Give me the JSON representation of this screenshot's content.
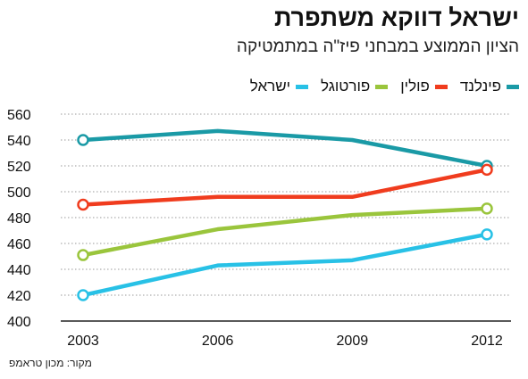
{
  "header": {
    "title": "ישראל דווקא משתפרת",
    "subtitle": "הציון הממוצע במבחני פיז\"ה במתמטיקה"
  },
  "legend": {
    "items": [
      {
        "label": "פינלנד",
        "color": "#1a9aa6"
      },
      {
        "label": "פולין",
        "color": "#f03c1e"
      },
      {
        "label": "פורטוגל",
        "color": "#9ac53c"
      },
      {
        "label": "ישראל",
        "color": "#28c1e6"
      }
    ]
  },
  "footer": {
    "source": "מקור: מכון טראמפ"
  },
  "chart_data": {
    "type": "line",
    "title": "ישראל דווקא משתפרת",
    "subtitle": "הציון הממוצע במבחני פיז\"ה במתמטיקה",
    "x": [
      "2003",
      "2006",
      "2009",
      "2012"
    ],
    "ylim": [
      400,
      560
    ],
    "yticks": [
      400,
      420,
      440,
      460,
      480,
      500,
      520,
      540,
      560
    ],
    "grid": "horizontal-dotted",
    "legend_position": "top-right",
    "series": [
      {
        "name": "פינלנד",
        "color": "#1a9aa6",
        "values": [
          540,
          547,
          540,
          520
        ]
      },
      {
        "name": "פולין",
        "color": "#f03c1e",
        "values": [
          490,
          496,
          496,
          517
        ]
      },
      {
        "name": "פורטוגל",
        "color": "#9ac53c",
        "values": [
          451,
          471,
          482,
          487
        ]
      },
      {
        "name": "ישראל",
        "color": "#28c1e6",
        "values": [
          420,
          443,
          447,
          467
        ]
      }
    ]
  }
}
